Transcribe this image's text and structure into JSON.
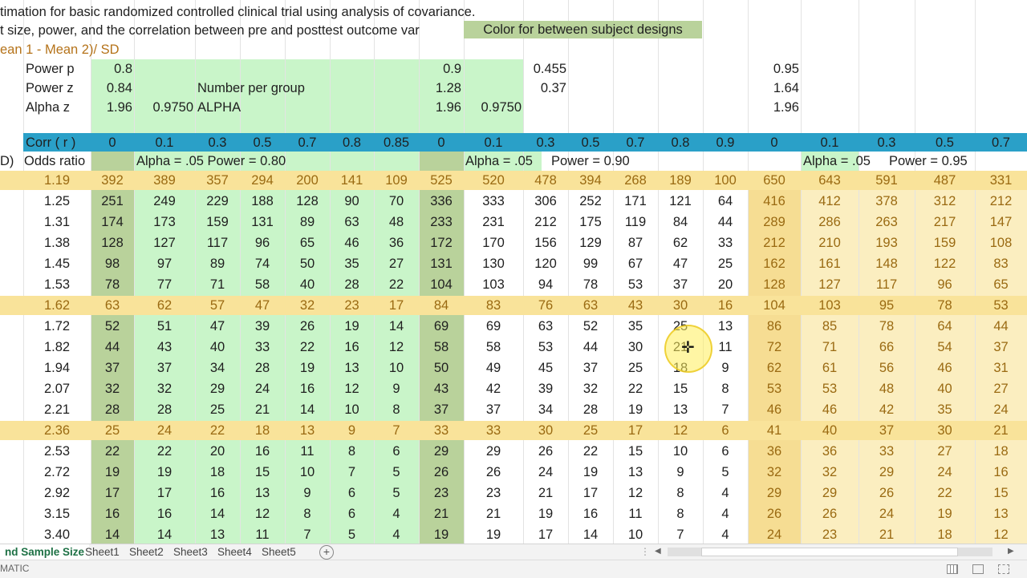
{
  "header": {
    "line1": "timation for basic randomized controlled clinical trial using analysis of covariance.",
    "line2": "t size, power, and the correlation between pre and posttest outcome var",
    "legend_label": "Color for between subject designs",
    "formula": "ean 1 - Mean 2)/ SD"
  },
  "params": {
    "power_p_label": "Power  p",
    "power_z_label": "Power z",
    "alpha_z_label": "Alpha z",
    "g1": {
      "power_p": "0.8",
      "power_z": "0.84",
      "alpha_z": "1.96",
      "alpha_val": "0.9750",
      "alpha_text": "ALPHA",
      "number_per_group": "Number per group"
    },
    "g2": {
      "power_p": "0.9",
      "power_z": "1.28",
      "alpha_z": "1.96",
      "alpha_val": "0.9750",
      "extra_p": "0.455",
      "extra_z": "0.37"
    },
    "g3": {
      "power_p": "0.95",
      "power_z": "1.64",
      "alpha_z": "1.96"
    }
  },
  "corr_row": {
    "label": "Corr ( r )",
    "values": [
      "0",
      "0.1",
      "0.3",
      "0.5",
      "0.7",
      "0.8",
      "0.85",
      "0",
      "0.1",
      "0.3",
      "0.5",
      "0.7",
      "0.8",
      "0.9",
      "0",
      "0.1",
      "0.3",
      "0.5",
      "0.7"
    ]
  },
  "odds_header": {
    "prefix": "D)",
    "label": "Odds ratio",
    "g1": "Alpha = .05    Power = 0.80",
    "g2a": "Alpha = .05",
    "g2b": "Power = 0.90",
    "g3a": "Alpha = .05",
    "g3b": "Power = 0.95"
  },
  "table": {
    "rows": [
      {
        "or": "1.19",
        "hl": true,
        "v": [
          "392",
          "389",
          "357",
          "294",
          "200",
          "141",
          "109",
          "525",
          "520",
          "478",
          "394",
          "268",
          "189",
          "100",
          "650",
          "643",
          "591",
          "487",
          "331"
        ]
      },
      {
        "or": "1.25",
        "hl": false,
        "v": [
          "251",
          "249",
          "229",
          "188",
          "128",
          "90",
          "70",
          "336",
          "333",
          "306",
          "252",
          "171",
          "121",
          "64",
          "416",
          "412",
          "378",
          "312",
          "212"
        ]
      },
      {
        "or": "1.31",
        "hl": false,
        "v": [
          "174",
          "173",
          "159",
          "131",
          "89",
          "63",
          "48",
          "233",
          "231",
          "212",
          "175",
          "119",
          "84",
          "44",
          "289",
          "286",
          "263",
          "217",
          "147"
        ]
      },
      {
        "or": "1.38",
        "hl": false,
        "v": [
          "128",
          "127",
          "117",
          "96",
          "65",
          "46",
          "36",
          "172",
          "170",
          "156",
          "129",
          "87",
          "62",
          "33",
          "212",
          "210",
          "193",
          "159",
          "108"
        ]
      },
      {
        "or": "1.45",
        "hl": false,
        "v": [
          "98",
          "97",
          "89",
          "74",
          "50",
          "35",
          "27",
          "131",
          "130",
          "120",
          "99",
          "67",
          "47",
          "25",
          "162",
          "161",
          "148",
          "122",
          "83"
        ]
      },
      {
        "or": "1.53",
        "hl": false,
        "v": [
          "78",
          "77",
          "71",
          "58",
          "40",
          "28",
          "22",
          "104",
          "103",
          "94",
          "78",
          "53",
          "37",
          "20",
          "128",
          "127",
          "117",
          "96",
          "65"
        ]
      },
      {
        "or": "1.62",
        "hl": true,
        "v": [
          "63",
          "62",
          "57",
          "47",
          "32",
          "23",
          "17",
          "84",
          "83",
          "76",
          "63",
          "43",
          "30",
          "16",
          "104",
          "103",
          "95",
          "78",
          "53"
        ]
      },
      {
        "or": "1.72",
        "hl": false,
        "v": [
          "52",
          "51",
          "47",
          "39",
          "26",
          "19",
          "14",
          "69",
          "69",
          "63",
          "52",
          "35",
          "25",
          "13",
          "86",
          "85",
          "78",
          "64",
          "44"
        ]
      },
      {
        "or": "1.82",
        "hl": false,
        "v": [
          "44",
          "43",
          "40",
          "33",
          "22",
          "16",
          "12",
          "58",
          "58",
          "53",
          "44",
          "30",
          "21",
          "11",
          "72",
          "71",
          "66",
          "54",
          "37"
        ]
      },
      {
        "or": "1.94",
        "hl": false,
        "v": [
          "37",
          "37",
          "34",
          "28",
          "19",
          "13",
          "10",
          "50",
          "49",
          "45",
          "37",
          "25",
          "18",
          "9",
          "62",
          "61",
          "56",
          "46",
          "31"
        ]
      },
      {
        "or": "2.07",
        "hl": false,
        "v": [
          "32",
          "32",
          "29",
          "24",
          "16",
          "12",
          "9",
          "43",
          "42",
          "39",
          "32",
          "22",
          "15",
          "8",
          "53",
          "53",
          "48",
          "40",
          "27"
        ]
      },
      {
        "or": "2.21",
        "hl": false,
        "v": [
          "28",
          "28",
          "25",
          "21",
          "14",
          "10",
          "8",
          "37",
          "37",
          "34",
          "28",
          "19",
          "13",
          "7",
          "46",
          "46",
          "42",
          "35",
          "24"
        ]
      },
      {
        "or": "2.36",
        "hl": true,
        "v": [
          "25",
          "24",
          "22",
          "18",
          "13",
          "9",
          "7",
          "33",
          "33",
          "30",
          "25",
          "17",
          "12",
          "6",
          "41",
          "40",
          "37",
          "30",
          "21"
        ]
      },
      {
        "or": "2.53",
        "hl": false,
        "v": [
          "22",
          "22",
          "20",
          "16",
          "11",
          "8",
          "6",
          "29",
          "29",
          "26",
          "22",
          "15",
          "10",
          "6",
          "36",
          "36",
          "33",
          "27",
          "18"
        ]
      },
      {
        "or": "2.72",
        "hl": false,
        "v": [
          "19",
          "19",
          "18",
          "15",
          "10",
          "7",
          "5",
          "26",
          "26",
          "24",
          "19",
          "13",
          "9",
          "5",
          "32",
          "32",
          "29",
          "24",
          "16"
        ]
      },
      {
        "or": "2.92",
        "hl": false,
        "v": [
          "17",
          "17",
          "16",
          "13",
          "9",
          "6",
          "5",
          "23",
          "23",
          "21",
          "17",
          "12",
          "8",
          "4",
          "29",
          "29",
          "26",
          "22",
          "15"
        ]
      },
      {
        "or": "3.15",
        "hl": false,
        "v": [
          "16",
          "16",
          "14",
          "12",
          "8",
          "6",
          "4",
          "21",
          "21",
          "19",
          "16",
          "11",
          "8",
          "4",
          "26",
          "26",
          "24",
          "19",
          "13"
        ]
      },
      {
        "or": "3.40",
        "hl": false,
        "v": [
          "14",
          "14",
          "13",
          "11",
          "7",
          "5",
          "4",
          "19",
          "19",
          "17",
          "14",
          "10",
          "7",
          "4",
          "24",
          "23",
          "21",
          "18",
          "12"
        ]
      }
    ]
  },
  "sheet_tabs": {
    "active": "nd Sample Size",
    "others": [
      "Sheet1",
      "Sheet2",
      "Sheet3",
      "Sheet4",
      "Sheet5"
    ],
    "add": "+"
  },
  "status": {
    "left_text": "MATIC"
  },
  "colors": {
    "teal": "#2aa0c8",
    "light_green": "#c9f5c9",
    "dark_green": "#b9d29b",
    "band": "#f9e39a",
    "tan": "#f6dd93",
    "number_dark": "#9a6a12"
  }
}
